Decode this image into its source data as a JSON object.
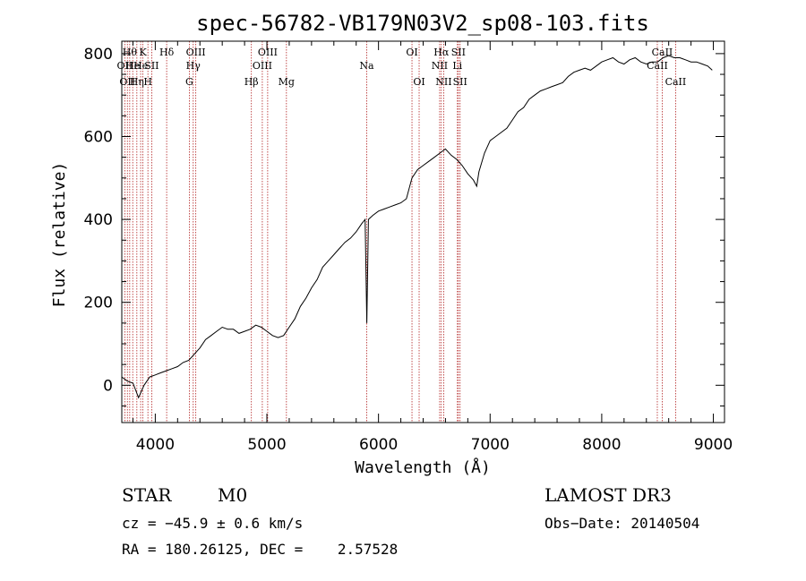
{
  "chart_data": {
    "type": "line",
    "title": "spec-56782-VB179N03V2_sp08-103.fits",
    "xlabel": "Wavelength (Å)",
    "ylabel": "Flux (relative)",
    "xlim": [
      3700,
      9100
    ],
    "ylim": [
      -90,
      830
    ],
    "xticks": [
      4000,
      5000,
      6000,
      7000,
      8000,
      9000
    ],
    "yticks": [
      0,
      200,
      400,
      600,
      800
    ],
    "grid": false,
    "series": [
      {
        "name": "flux",
        "x": [
          3700,
          3750,
          3800,
          3850,
          3900,
          3950,
          4000,
          4050,
          4100,
          4150,
          4200,
          4250,
          4300,
          4350,
          4400,
          4450,
          4500,
          4550,
          4600,
          4650,
          4700,
          4750,
          4800,
          4850,
          4900,
          4950,
          5000,
          5050,
          5100,
          5150,
          5200,
          5250,
          5300,
          5350,
          5400,
          5450,
          5500,
          5550,
          5600,
          5650,
          5700,
          5750,
          5800,
          5850,
          5880,
          5895,
          5910,
          5950,
          6000,
          6050,
          6100,
          6150,
          6200,
          6250,
          6300,
          6350,
          6400,
          6450,
          6500,
          6550,
          6600,
          6650,
          6700,
          6750,
          6800,
          6850,
          6880,
          6900,
          6950,
          7000,
          7050,
          7100,
          7150,
          7200,
          7250,
          7300,
          7350,
          7400,
          7450,
          7500,
          7550,
          7600,
          7650,
          7700,
          7750,
          7800,
          7850,
          7900,
          7950,
          8000,
          8050,
          8100,
          8150,
          8200,
          8250,
          8300,
          8350,
          8400,
          8450,
          8500,
          8550,
          8600,
          8650,
          8700,
          8750,
          8800,
          8850,
          8900,
          8950,
          8990
        ],
        "values": [
          20,
          10,
          5,
          -30,
          0,
          20,
          25,
          30,
          35,
          40,
          45,
          55,
          60,
          75,
          90,
          110,
          120,
          130,
          140,
          135,
          135,
          125,
          130,
          135,
          145,
          140,
          130,
          120,
          115,
          120,
          140,
          160,
          190,
          210,
          235,
          255,
          285,
          300,
          315,
          330,
          345,
          355,
          370,
          390,
          400,
          150,
          400,
          410,
          420,
          425,
          430,
          435,
          440,
          450,
          500,
          520,
          530,
          540,
          550,
          560,
          570,
          555,
          545,
          530,
          510,
          495,
          480,
          515,
          560,
          590,
          600,
          610,
          620,
          640,
          660,
          670,
          690,
          700,
          710,
          715,
          720,
          725,
          730,
          745,
          755,
          760,
          765,
          760,
          770,
          780,
          785,
          790,
          780,
          775,
          785,
          790,
          780,
          775,
          780,
          780,
          790,
          795,
          790,
          790,
          785,
          780,
          780,
          775,
          770,
          760
        ]
      }
    ],
    "lines": [
      {
        "wl": 3727,
        "label": "OII",
        "row": 2
      },
      {
        "wl": 3750,
        "label": "OII",
        "row": 3
      },
      {
        "wl": 3771,
        "label": "Hθ",
        "row": 1
      },
      {
        "wl": 3798,
        "label": "He",
        "row": 2
      },
      {
        "wl": 3835,
        "label": "Hη",
        "row": 3
      },
      {
        "wl": 3869,
        "label": "He",
        "row": 2
      },
      {
        "wl": 3889,
        "label": "K",
        "row": 1
      },
      {
        "wl": 3934,
        "label": "H",
        "row": 3
      },
      {
        "wl": 3968,
        "label": "SII",
        "row": 2
      },
      {
        "wl": 4102,
        "label": "Hδ",
        "row": 1
      },
      {
        "wl": 4305,
        "label": "G",
        "row": 3
      },
      {
        "wl": 4340,
        "label": "Hγ",
        "row": 2
      },
      {
        "wl": 4363,
        "label": "OIII",
        "row": 1
      },
      {
        "wl": 4861,
        "label": "Hβ",
        "row": 3
      },
      {
        "wl": 4959,
        "label": "OIII",
        "row": 2
      },
      {
        "wl": 5007,
        "label": "OIII",
        "row": 1
      },
      {
        "wl": 5175,
        "label": "Mg",
        "row": 3
      },
      {
        "wl": 5894,
        "label": "Na",
        "row": 2
      },
      {
        "wl": 6300,
        "label": "OI",
        "row": 1
      },
      {
        "wl": 6364,
        "label": "OI",
        "row": 3
      },
      {
        "wl": 6548,
        "label": "NII",
        "row": 2
      },
      {
        "wl": 6563,
        "label": "Hα",
        "row": 1
      },
      {
        "wl": 6584,
        "label": "NII",
        "row": 3
      },
      {
        "wl": 6707,
        "label": "Li",
        "row": 2
      },
      {
        "wl": 6716,
        "label": "SII",
        "row": 1
      },
      {
        "wl": 6731,
        "label": "SII",
        "row": 3
      },
      {
        "wl": 8498,
        "label": "CaII",
        "row": 2
      },
      {
        "wl": 8542,
        "label": "CaII",
        "row": 1
      },
      {
        "wl": 8662,
        "label": "CaII",
        "row": 3
      }
    ]
  },
  "footer": {
    "class_label": "STAR",
    "subclass": "M0",
    "survey": "LAMOST DR3",
    "cz": "cz = −45.9 ± 0.6 km/s",
    "obs_date": "Obs−Date: 20140504",
    "radec": "RA = 180.26125, DEC =    2.57528"
  },
  "colors": {
    "spectrum": "#000000",
    "line_markers": "#b22222",
    "axes": "#000000"
  }
}
